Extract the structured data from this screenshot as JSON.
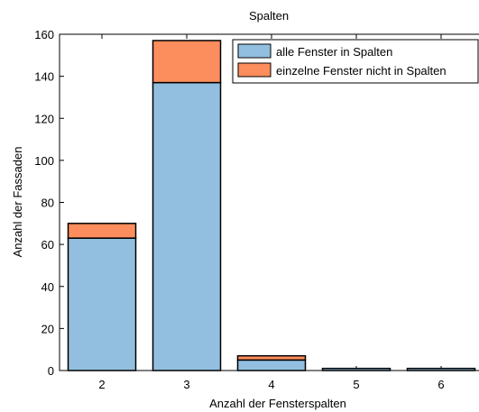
{
  "chart_data": {
    "type": "bar",
    "stacked": true,
    "title": "Spalten",
    "xlabel": "Anzahl der Fensterspalten",
    "ylabel": "Anzahl der Fassaden",
    "categories": [
      "2",
      "3",
      "4",
      "5",
      "6"
    ],
    "ylim": [
      0,
      160
    ],
    "yticks": [
      0,
      20,
      40,
      60,
      80,
      100,
      120,
      140,
      160
    ],
    "legend_position": "top-right",
    "series": [
      {
        "name": "alle Fenster in Spalten",
        "values": [
          63,
          137,
          5,
          1,
          1
        ],
        "color": "#92bfdf"
      },
      {
        "name": "einzelne Fenster nicht in Spalten",
        "values": [
          7,
          20,
          2,
          0,
          0
        ],
        "color": "#fc8d5c"
      }
    ]
  }
}
